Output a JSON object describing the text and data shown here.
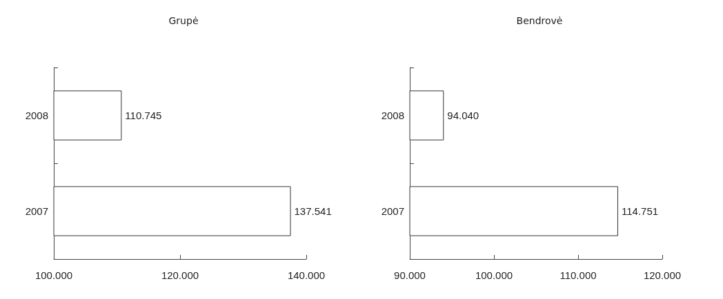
{
  "chart_data": [
    {
      "type": "bar",
      "title": "Grupė",
      "orientation": "horizontal",
      "categories": [
        "2008",
        "2007"
      ],
      "values": [
        110745,
        137541
      ],
      "value_labels": [
        "110.745",
        "137.541"
      ],
      "color": "#ffffff",
      "xlim": [
        100000,
        140000
      ],
      "xticks": [
        {
          "value": 100000,
          "label": "100.000"
        },
        {
          "value": 120000,
          "label": "120.000"
        },
        {
          "value": 140000,
          "label": "140.000"
        }
      ],
      "grid": false
    },
    {
      "type": "bar",
      "title": "Bendrovė",
      "orientation": "horizontal",
      "categories": [
        "2008",
        "2007"
      ],
      "values": [
        94040,
        114751
      ],
      "value_labels": [
        "94.040",
        "114.751"
      ],
      "color": "#ffffff",
      "xlim": [
        90000,
        120000
      ],
      "xticks": [
        {
          "value": 90000,
          "label": "90.000"
        },
        {
          "value": 100000,
          "label": "100.000"
        },
        {
          "value": 110000,
          "label": "110.000"
        },
        {
          "value": 120000,
          "label": "120.000"
        }
      ],
      "grid": false
    }
  ]
}
